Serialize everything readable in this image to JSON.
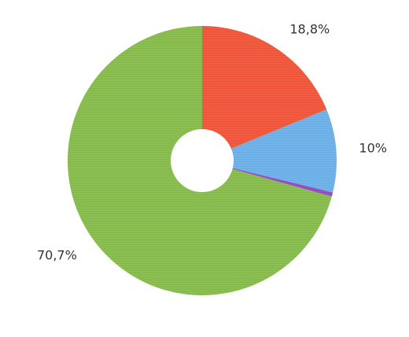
{
  "chart_data": {
    "type": "donut",
    "values": [
      18.8,
      10,
      0.5,
      70.7
    ],
    "value_labels": [
      "18,8%",
      "10%",
      null,
      "70,7%"
    ],
    "colors": [
      "#f45b3f",
      "#71b5ec",
      "#9b4fc4",
      "#8cc152"
    ]
  }
}
